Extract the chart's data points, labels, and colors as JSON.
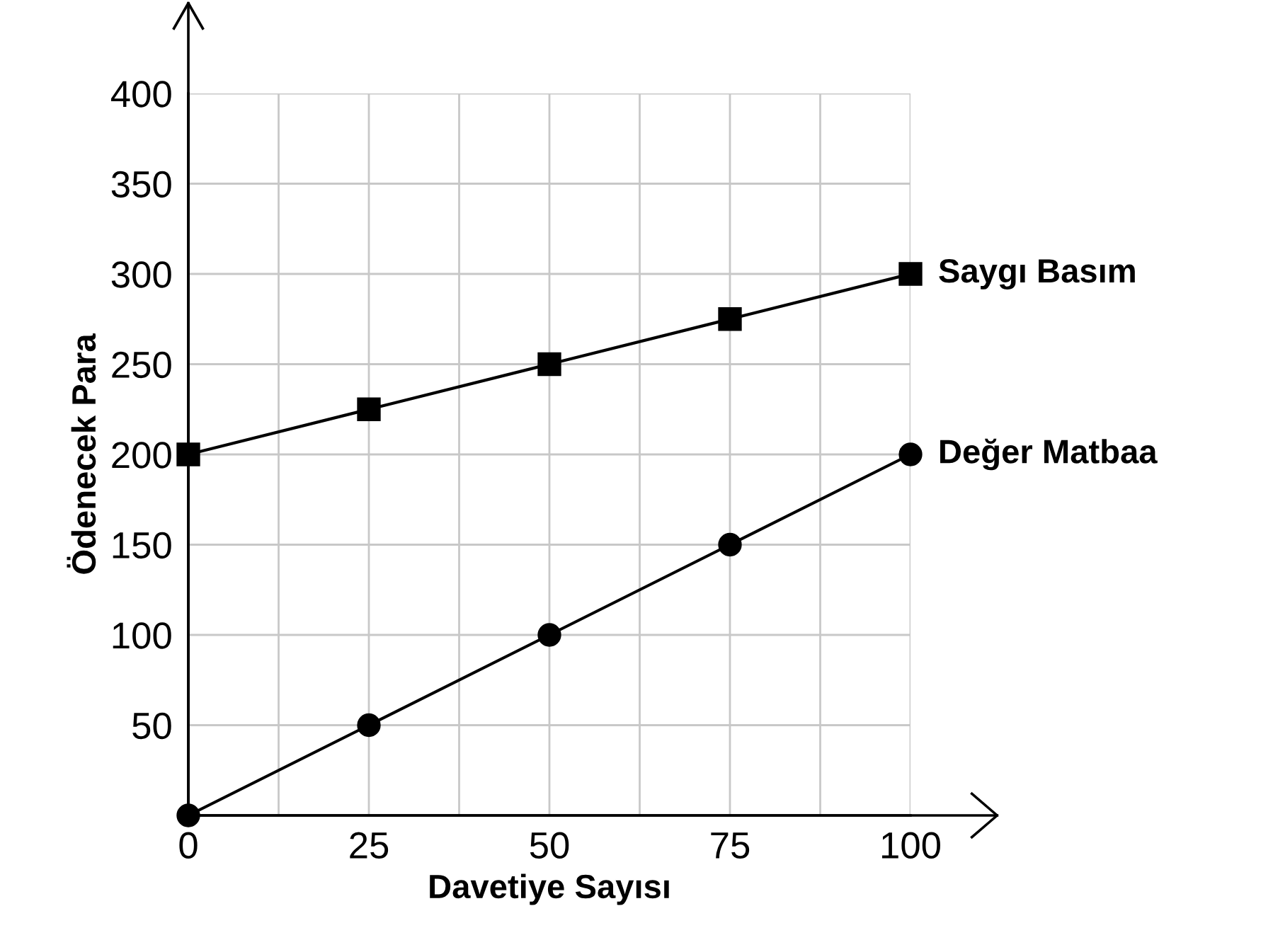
{
  "chart_data": {
    "type": "line",
    "xlabel": "Davetiye Sayısı",
    "ylabel": "Ödenecek Para",
    "x": [
      0,
      25,
      50,
      75,
      100
    ],
    "series": [
      {
        "name": "Saygı Basım",
        "color": "#000000",
        "marker": "square",
        "values": [
          200,
          225,
          250,
          275,
          300
        ]
      },
      {
        "name": "Değer Matbaa",
        "color": "#000000",
        "marker": "circle",
        "values": [
          0,
          50,
          100,
          150,
          200
        ]
      }
    ],
    "xlim": [
      0,
      100
    ],
    "ylim": [
      0,
      400
    ],
    "xticks": [
      0,
      {
        "value": 12.5,
        "label": null
      },
      25,
      {
        "value": 37.5,
        "label": null
      },
      50,
      {
        "value": 62.5,
        "label": null
      },
      75,
      {
        "value": 87.5,
        "label": null
      },
      100
    ],
    "yticks": [
      {
        "value": 0,
        "label": null
      },
      50,
      100,
      150,
      200,
      250,
      300,
      350,
      400
    ],
    "grid": true,
    "legend": false,
    "line_style": "solid"
  }
}
